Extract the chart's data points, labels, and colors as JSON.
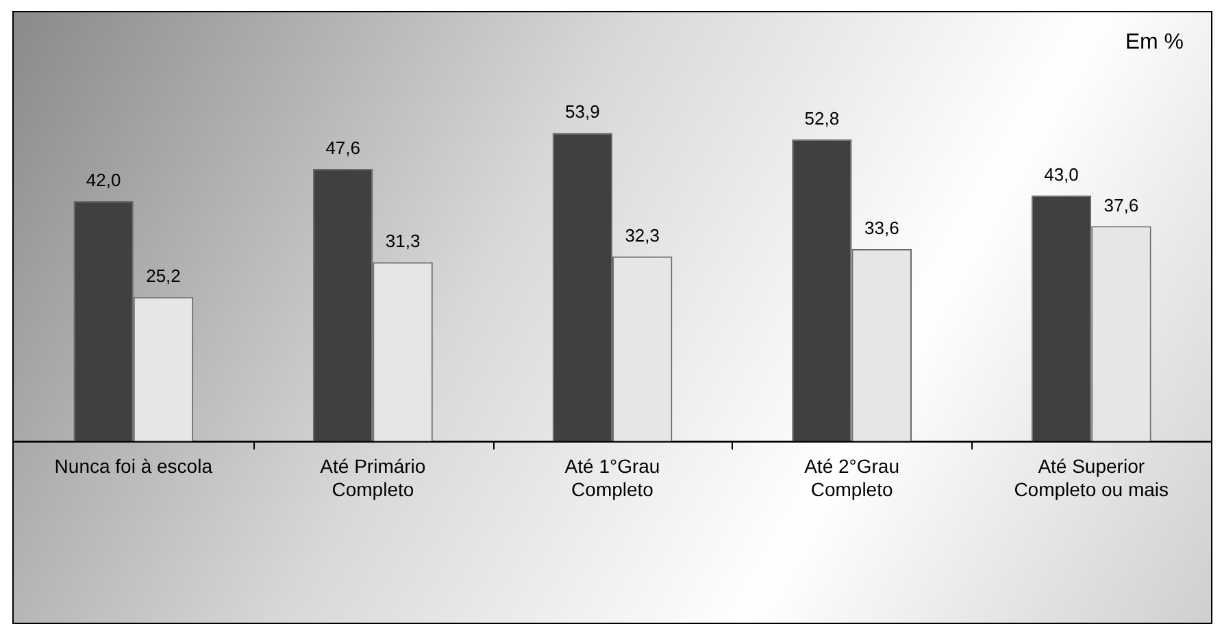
{
  "chart_data": {
    "type": "bar",
    "categories": [
      "Nunca foi à escola",
      "Até Primário\nCompleto",
      "Até 1°Grau\nCompleto",
      "Até 2°Grau\nCompleto",
      "Até Superior\nCompleto ou mais"
    ],
    "series": [
      {
        "color": "#404040",
        "values": [
          42.0,
          47.6,
          53.9,
          52.8,
          43.0
        ],
        "value_labels": [
          "42,0",
          "47,6",
          "53,9",
          "52,8",
          "43,0"
        ]
      },
      {
        "color": "#e6e6e6",
        "values": [
          25.2,
          31.3,
          32.3,
          33.6,
          37.6
        ],
        "value_labels": [
          "25,2",
          "31,3",
          "32,3",
          "33,6",
          "37,6"
        ]
      }
    ],
    "ylim": [
      0,
      75
    ],
    "tick_labels": "x",
    "grid": false,
    "legend": false,
    "annotations": [
      "Em %"
    ]
  }
}
